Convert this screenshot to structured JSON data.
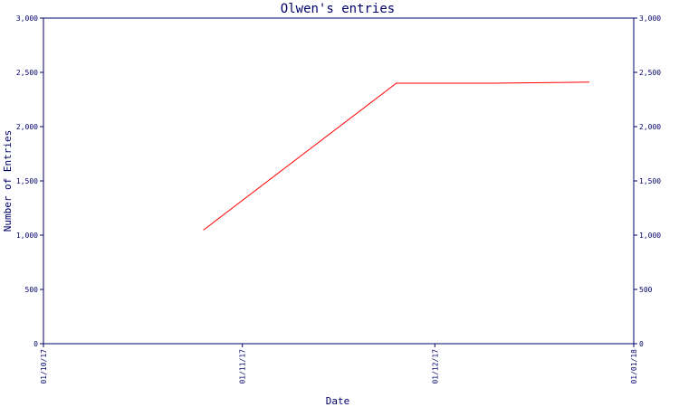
{
  "chart_data": {
    "type": "line",
    "title": "Olwen's entries",
    "xlabel": "Date",
    "ylabel": "Number of Entries",
    "x_tick_labels": [
      "01/10/17",
      "01/11/17",
      "01/12/17",
      "01/01/18"
    ],
    "x_tick_dates": [
      "2017-10-01",
      "2017-11-01",
      "2017-12-01",
      "2018-01-01"
    ],
    "y_ticks": [
      0,
      500,
      1000,
      1500,
      2000,
      2500,
      3000
    ],
    "y_tick_labels": [
      "0",
      "500",
      "1,000",
      "1,500",
      "2,000",
      "2,500",
      "3,000"
    ],
    "ylim": [
      0,
      3000
    ],
    "xlim": [
      "2017-10-01",
      "2018-01-01"
    ],
    "right_axis_mirror": true,
    "grid": false,
    "series": [
      {
        "color": "#ff0000",
        "points": [
          {
            "x": "2017-10-26",
            "y": 1050
          },
          {
            "x": "2017-11-25",
            "y": 2400
          },
          {
            "x": "2017-12-10",
            "y": 2400
          },
          {
            "x": "2017-12-25",
            "y": 2410
          }
        ]
      }
    ],
    "axis_color": "#00006b"
  }
}
